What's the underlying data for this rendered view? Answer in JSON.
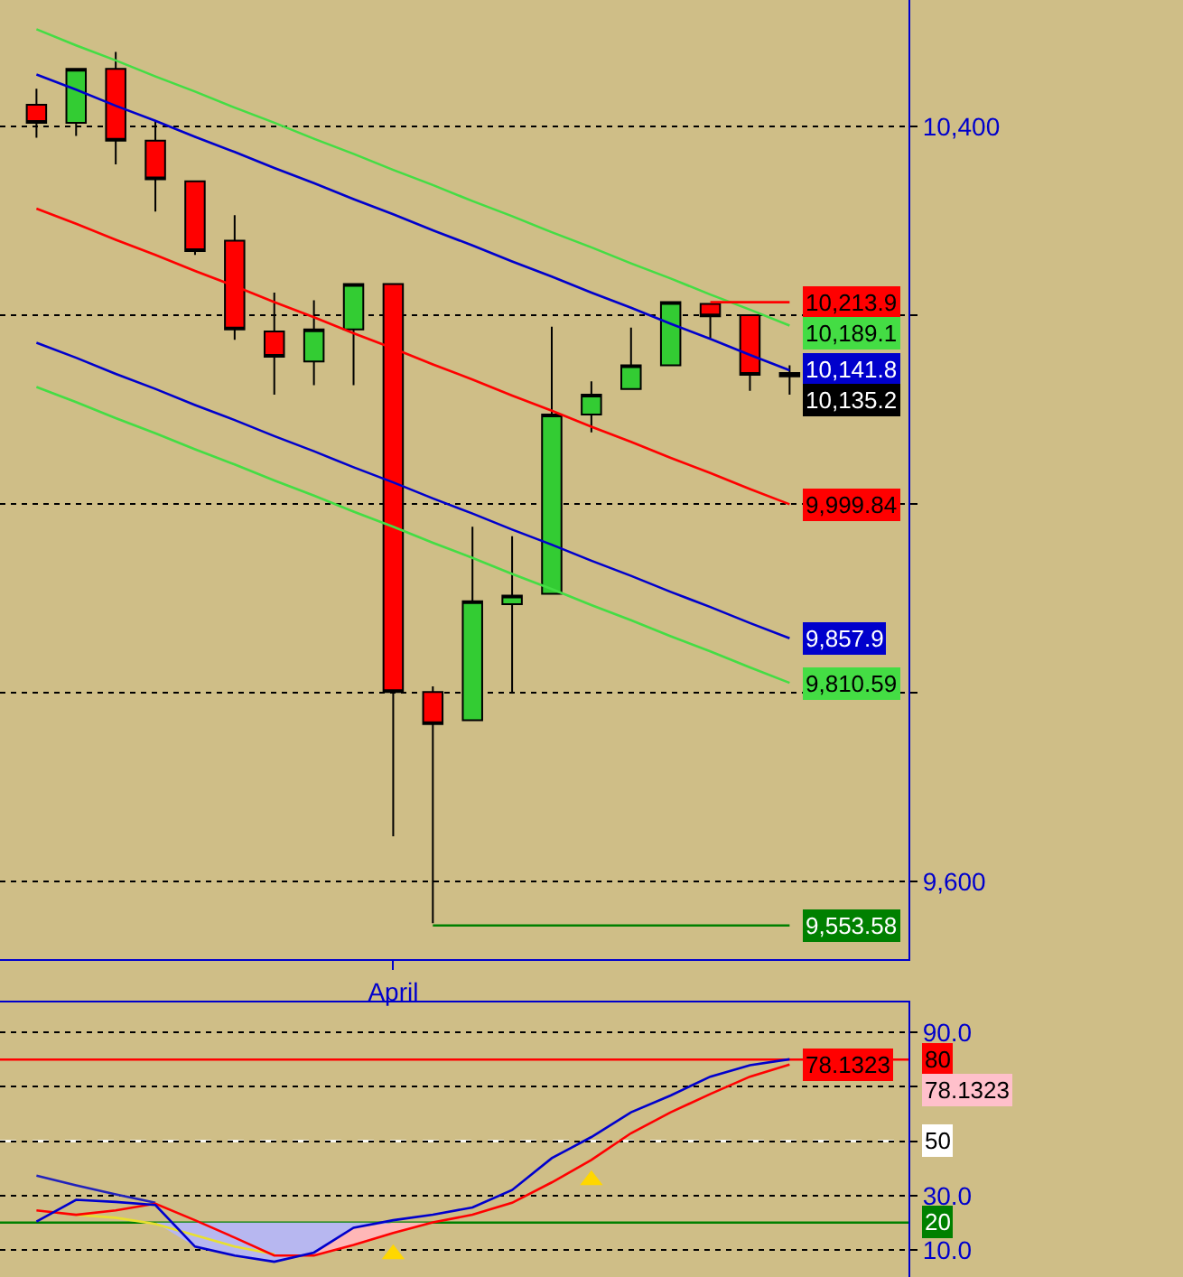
{
  "chart_data": [
    {
      "type": "candlestick",
      "categories": [
        null,
        null,
        null,
        null,
        null,
        null,
        null,
        null,
        null,
        "April",
        null,
        null,
        null,
        null,
        null,
        null,
        null,
        null,
        null,
        null
      ],
      "ohlc": [
        [
          10423,
          10440,
          10388,
          10404
        ],
        [
          10404,
          10461,
          10390,
          10461
        ],
        [
          10461,
          10479,
          10360,
          10385
        ],
        [
          10385,
          10406,
          10310,
          10344
        ],
        [
          10342,
          10342,
          10264,
          10268
        ],
        [
          10279,
          10306,
          10174,
          10185
        ],
        [
          10183,
          10224,
          10116,
          10156
        ],
        [
          10151,
          10216,
          10126,
          10185
        ],
        [
          10185,
          10233,
          10126,
          10233
        ],
        [
          10233,
          10233,
          9648,
          9801
        ],
        [
          9801,
          9807,
          9556,
          9767
        ],
        [
          9771,
          9976,
          9771,
          9897
        ],
        [
          9894,
          9966,
          9801,
          9903
        ],
        [
          9905,
          10188,
          9905,
          10095
        ],
        [
          10095,
          10130,
          10076,
          10116
        ],
        [
          10122,
          10187,
          10122,
          10147
        ],
        [
          10147,
          10214,
          10147,
          10214
        ],
        [
          10212,
          10212,
          10176,
          10199
        ],
        [
          10200,
          10200,
          10120,
          10137
        ],
        [
          10139,
          10147,
          10116,
          10135.2
        ]
      ],
      "value_labels": [
        null,
        null,
        null,
        null,
        null,
        null,
        null,
        null,
        null,
        null,
        null,
        null,
        null,
        null,
        null,
        null,
        null,
        null,
        null,
        "10,135.2"
      ],
      "colors": [
        "#ff0000",
        "#33cc33",
        "#ff0000",
        "#ff0000",
        "#ff0000",
        "#ff0000",
        "#ff0000",
        "#33cc33",
        "#33cc33",
        "#ff0000",
        "#ff0000",
        "#33cc33",
        "#33cc33",
        "#33cc33",
        "#33cc33",
        "#33cc33",
        "#33cc33",
        "#ff0000",
        "#ff0000",
        "#ff0000"
      ],
      "series": [
        {
          "type": "line",
          "color": "#44dd44",
          "values": [
            10503,
            10486,
            10470,
            10453,
            10437,
            10420,
            10404,
            10387,
            10371,
            10354,
            10338,
            10321,
            10305,
            10288,
            10272,
            10255,
            10239,
            10222,
            10206,
            10189.1
          ],
          "value_labels": [
            null,
            null,
            null,
            null,
            null,
            null,
            null,
            null,
            null,
            null,
            null,
            null,
            null,
            null,
            null,
            null,
            null,
            null,
            null,
            "10,189.1"
          ]
        },
        {
          "type": "line",
          "color": "#0000cc",
          "values": [
            10455,
            10439,
            10422,
            10406,
            10389,
            10373,
            10356,
            10340,
            10323,
            10307,
            10290,
            10274,
            10257,
            10241,
            10224,
            10208,
            10191,
            10175,
            10158,
            10141.8
          ],
          "value_labels": [
            null,
            null,
            null,
            null,
            null,
            null,
            null,
            null,
            null,
            null,
            null,
            null,
            null,
            null,
            null,
            null,
            null,
            null,
            null,
            "10,141.8"
          ]
        },
        {
          "type": "line",
          "color": "#ff0000",
          "values": [
            10313,
            10297,
            10280,
            10264,
            10247,
            10231,
            10214,
            10198,
            10181,
            10165,
            10148,
            10132,
            10115,
            10099,
            10082,
            10066,
            10049,
            10033,
            10016,
            9999.84
          ],
          "value_labels": [
            null,
            null,
            null,
            null,
            null,
            null,
            null,
            null,
            null,
            null,
            null,
            null,
            null,
            null,
            null,
            null,
            null,
            null,
            null,
            "9,999.84"
          ]
        },
        {
          "type": "line",
          "color": "#0000cc",
          "values": [
            10171,
            10155,
            10138,
            10122,
            10105,
            10089,
            10072,
            10056,
            10039,
            10023,
            10006,
            9990,
            9973,
            9957,
            9940,
            9924,
            9907,
            9891,
            9874,
            9857.9
          ],
          "value_labels": [
            null,
            null,
            null,
            null,
            null,
            null,
            null,
            null,
            null,
            null,
            null,
            null,
            null,
            null,
            null,
            null,
            null,
            null,
            null,
            "9,857.9"
          ]
        },
        {
          "type": "line",
          "color": "#44dd44",
          "values": [
            10124,
            10108,
            10091,
            10075,
            10058,
            10042,
            10025,
            10009,
            9992,
            9976,
            9959,
            9943,
            9926,
            9910,
            9893,
            9877,
            9860,
            9844,
            9827,
            9810.59
          ],
          "value_labels": [
            null,
            null,
            null,
            null,
            null,
            null,
            null,
            null,
            null,
            null,
            null,
            null,
            null,
            null,
            null,
            null,
            null,
            null,
            null,
            "9,810.59"
          ]
        },
        {
          "type": "line",
          "color": "#ff0000",
          "values": [
            null,
            null,
            null,
            null,
            null,
            null,
            null,
            null,
            null,
            null,
            null,
            null,
            null,
            null,
            null,
            null,
            null,
            10213.9,
            10213.9,
            10213.9
          ],
          "value_labels": [
            null,
            null,
            null,
            null,
            null,
            null,
            null,
            null,
            null,
            null,
            null,
            null,
            null,
            null,
            null,
            null,
            null,
            null,
            null,
            "10,213.9"
          ]
        },
        {
          "type": "line",
          "color": "#008000",
          "values": [
            null,
            null,
            null,
            null,
            null,
            null,
            null,
            null,
            null,
            null,
            9553.58,
            9553.58,
            9553.58,
            9553.58,
            9553.58,
            9553.58,
            9553.58,
            9553.58,
            9553.58,
            9553.58
          ],
          "value_labels": [
            null,
            null,
            null,
            null,
            null,
            null,
            null,
            null,
            null,
            null,
            null,
            null,
            null,
            null,
            null,
            null,
            null,
            null,
            null,
            "9,553.58"
          ]
        }
      ],
      "ylim": [
        9518,
        10534
      ],
      "yticks": [
        {
          "value": 10400,
          "label": "10,400"
        },
        {
          "value": 10200,
          "label": null
        },
        {
          "value": 10000,
          "label": null
        },
        {
          "value": 9800,
          "label": null
        },
        {
          "value": 9600,
          "label": "9,600"
        }
      ],
      "grid": "y"
    },
    {
      "type": "line",
      "categories": [
        null,
        null,
        null,
        null,
        null,
        null,
        null,
        null,
        null,
        null,
        null,
        null,
        null,
        null,
        null,
        null,
        null,
        null,
        null,
        null
      ],
      "series": [
        {
          "type": "line",
          "color": "#2222bb",
          "values": [
            37.3,
            33.7,
            30.4,
            27.3,
            null,
            null,
            null,
            null,
            null,
            null,
            null,
            null,
            null,
            null,
            null,
            null,
            null,
            null,
            null,
            null
          ]
        },
        {
          "type": "line",
          "color": "#e8e030",
          "values": [
            null,
            22.9,
            21.8,
            19.5,
            15.4,
            11.2,
            8.4,
            null,
            null,
            null,
            null,
            null,
            null,
            null,
            null,
            null,
            null,
            null,
            null,
            null
          ]
        },
        {
          "type": "line",
          "color": "#ff0000",
          "values": [
            24.5,
            22.9,
            24.5,
            27.0,
            20.9,
            14.5,
            7.9,
            7.9,
            11.8,
            16.2,
            20.1,
            22.9,
            27.3,
            34.8,
            43.1,
            52.9,
            60.6,
            67.3,
            73.7,
            78.1323
          ],
          "value_labels": [
            null,
            null,
            null,
            null,
            null,
            null,
            null,
            null,
            null,
            null,
            null,
            null,
            null,
            null,
            null,
            null,
            null,
            null,
            null,
            "78.1323"
          ],
          "lower": [
            null,
            null,
            null,
            null,
            null,
            null,
            null,
            7.9,
            11.8,
            16.2,
            20,
            null,
            null,
            null,
            null,
            null,
            null,
            null,
            null,
            null
          ],
          "upper": [
            null,
            null,
            null,
            null,
            null,
            null,
            null,
            9.0,
            18.1,
            20,
            20,
            null,
            null,
            null,
            null,
            null,
            null,
            null,
            null,
            null
          ]
        },
        {
          "type": "line",
          "color": "#0000cc",
          "values": [
            20.4,
            28.4,
            27.6,
            26.5,
            11.2,
            7.9,
            5.6,
            9.0,
            18.1,
            20.9,
            22.9,
            25.6,
            32.0,
            43.7,
            51.5,
            60.6,
            66.8,
            73.7,
            77.9,
            80.1
          ],
          "lower": [
            null,
            null,
            null,
            20,
            11.2,
            7.9,
            5.6,
            9.0,
            18.1,
            20,
            null,
            null,
            null,
            null,
            null,
            null,
            null,
            null,
            null,
            null
          ],
          "upper": [
            null,
            null,
            null,
            20,
            20,
            20,
            20,
            20,
            20,
            20,
            null,
            null,
            null,
            null,
            null,
            null,
            null,
            null,
            null,
            null
          ]
        },
        {
          "type": "scatter",
          "color": "#ffd700",
          "marker": "triangle",
          "values": [
            null,
            null,
            null,
            null,
            null,
            null,
            null,
            null,
            null,
            8.4,
            null,
            null,
            null,
            null,
            35.6,
            null,
            null,
            null,
            null,
            null
          ]
        }
      ],
      "annotations": [
        "78.1323"
      ],
      "ref_lines": [
        {
          "axis": "y",
          "value": 80,
          "label": "80",
          "color": "#ff0000",
          "line_style": "solid"
        },
        {
          "axis": "y",
          "value": 20,
          "label": "20",
          "color": "#008000",
          "line_style": "solid"
        },
        {
          "axis": "y",
          "value": 50,
          "label": "50",
          "color": "#ffffff",
          "line_style": "dashed"
        }
      ],
      "ylim": [
        0,
        101
      ],
      "yticks": [
        {
          "value": 90,
          "label": "90.0"
        },
        {
          "value": 70,
          "label": null
        },
        {
          "value": 50,
          "label": null
        },
        {
          "value": 30,
          "label": "30.0"
        },
        {
          "value": 10,
          "label": "10.0"
        }
      ],
      "tick_labels": "y",
      "grid": "y"
    }
  ]
}
